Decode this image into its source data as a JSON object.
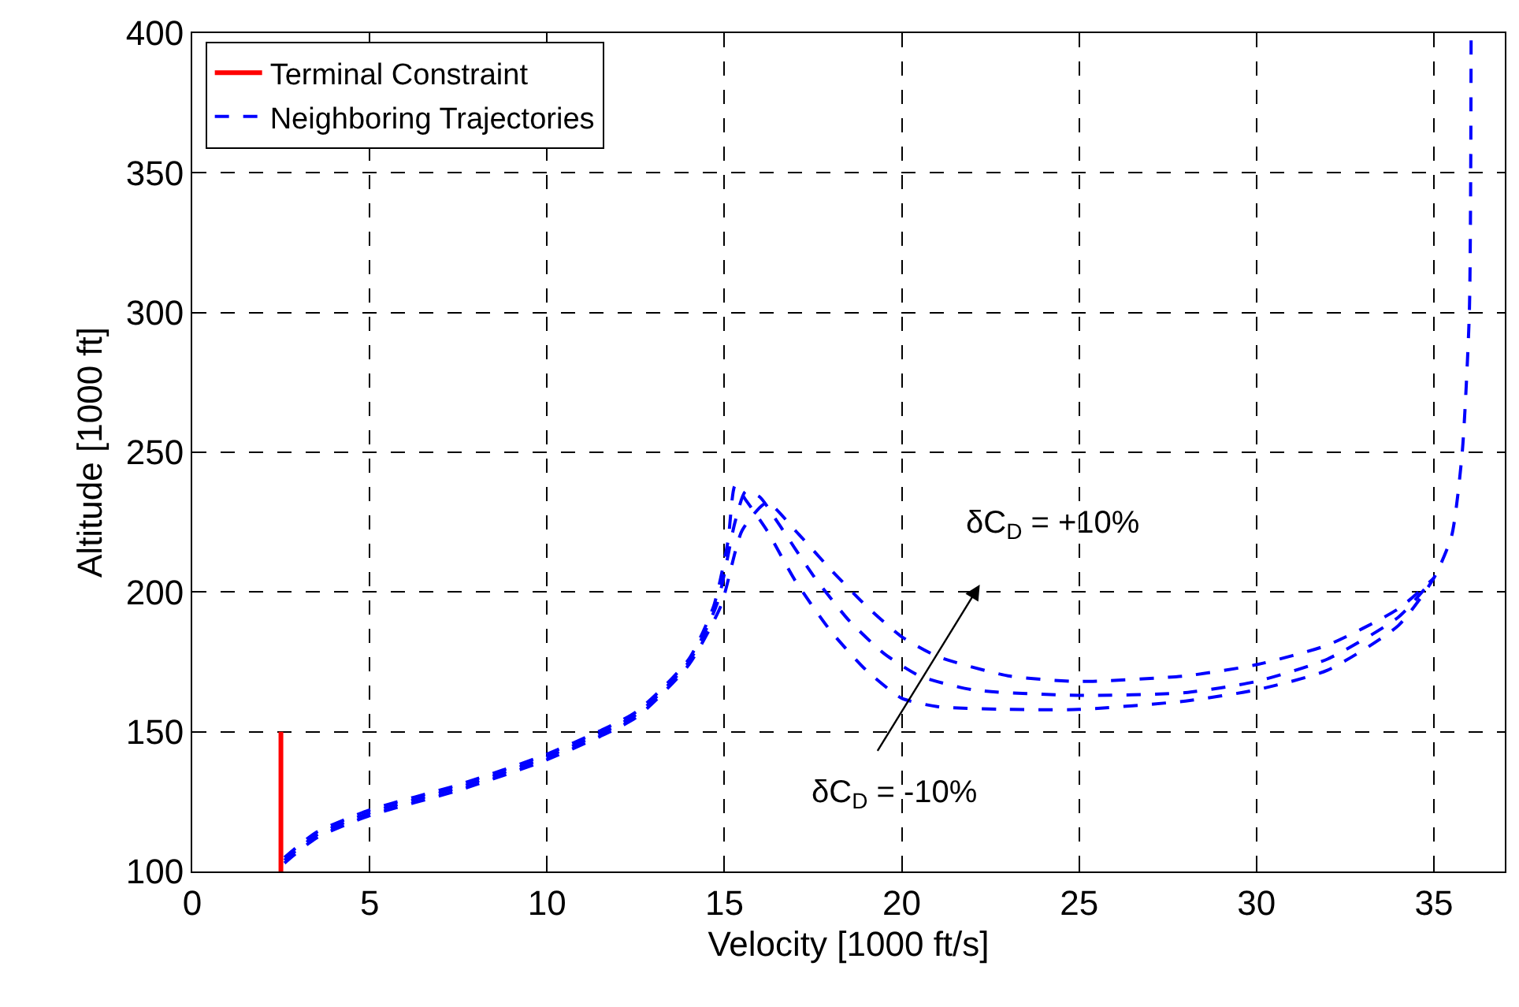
{
  "chart_data": {
    "type": "line",
    "xlabel": "Velocity [1000 ft/s]",
    "ylabel": "Altitude [1000 ft]",
    "xlim": [
      0,
      37
    ],
    "xticks": [
      0,
      5,
      10,
      15,
      20,
      25,
      30,
      35
    ],
    "ylim": [
      100,
      400
    ],
    "yticks": [
      100,
      150,
      200,
      250,
      300,
      350,
      400
    ],
    "grid": true,
    "legend": "top left",
    "series": [
      {
        "name": "Terminal Constraint",
        "color": "#ff0000",
        "line_style": "solid",
        "x": [
          2.5,
          2.5
        ],
        "values": [
          100,
          150
        ]
      },
      {
        "name": "Neighboring Trajectories",
        "color": "#0000ff",
        "line_style": "dashed",
        "x": [
          2.6,
          3.5,
          5,
          7.5,
          10,
          12.5,
          14,
          14.7,
          15.1,
          15.3,
          15.6,
          16.2,
          17,
          18,
          19,
          20,
          21,
          23,
          25,
          28,
          30,
          32,
          34,
          35,
          35.5,
          35.8,
          36,
          36.05
        ],
        "values": [
          105,
          114,
          122,
          131,
          142,
          157,
          176,
          195,
          218,
          238,
          233,
          222,
          204,
          186,
          172,
          162,
          159,
          158,
          158,
          161,
          165,
          172,
          188,
          205,
          220,
          250,
          300,
          400
        ]
      },
      {
        "color": "#0000ff",
        "line_style": "dashed",
        "x": [
          2.6,
          3.5,
          5,
          7.5,
          10,
          12.5,
          14,
          14.8,
          15.3,
          15.6,
          16,
          16.5,
          17.5,
          18.5,
          19.5,
          20.5,
          22,
          25,
          28,
          30,
          32,
          34,
          35
        ],
        "values": [
          104,
          113,
          121,
          130,
          141,
          156,
          175,
          196,
          225,
          236,
          234,
          225,
          206,
          190,
          178,
          170,
          165,
          163,
          164,
          168,
          176,
          191,
          205
        ]
      },
      {
        "color": "#0000ff",
        "line_style": "dashed",
        "x": [
          2.6,
          3.5,
          5,
          7.5,
          10,
          12.5,
          14,
          14.9,
          15.5,
          16.2,
          17,
          18,
          19,
          20,
          21,
          23,
          25,
          28,
          30,
          32,
          34,
          35
        ],
        "values": [
          103,
          112,
          120,
          129,
          140,
          155,
          174,
          195,
          222,
          232,
          222,
          208,
          195,
          184,
          177,
          170,
          168,
          170,
          174,
          181,
          194,
          205
        ]
      }
    ],
    "annotations": [
      "δC$_{D}$ = +10%",
      "δC$_{D}$ = -10%"
    ]
  }
}
